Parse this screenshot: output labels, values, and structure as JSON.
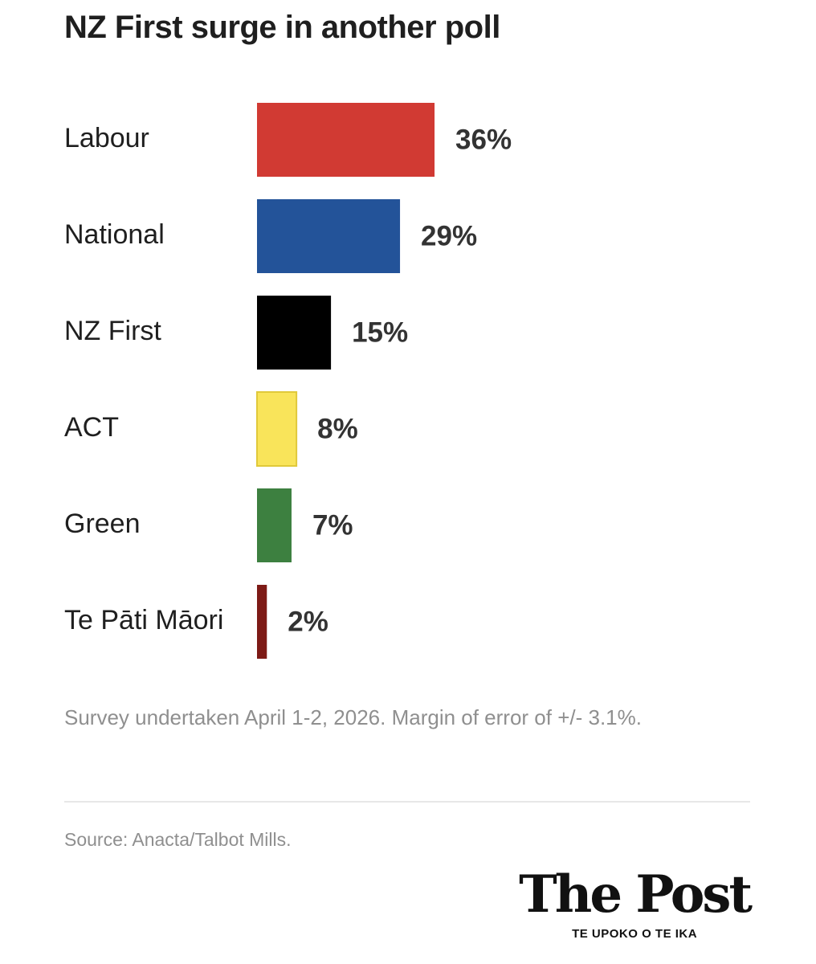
{
  "chart_data": {
    "type": "bar",
    "orientation": "horizontal",
    "title": "NZ First surge in another poll",
    "categories": [
      "Labour",
      "National",
      "NZ First",
      "ACT",
      "Green",
      "Te Pāti Māori"
    ],
    "values": [
      36,
      29,
      15,
      8,
      7,
      2
    ],
    "value_labels": [
      "36%",
      "29%",
      "15%",
      "8%",
      "7%",
      "2%"
    ],
    "colors": [
      "#d13a33",
      "#235399",
      "#000000",
      "#f9e45a",
      "#3d8040",
      "#7d1a16"
    ],
    "grid": false,
    "legend": "none"
  },
  "footnote": "Survey undertaken April 1-2, 2026. Margin of error of +/- 3.1%.",
  "source": "Source: Anacta/Talbot Mills.",
  "logo": {
    "name": "The Post",
    "tagline": "TE UPOKO O TE IKA"
  }
}
